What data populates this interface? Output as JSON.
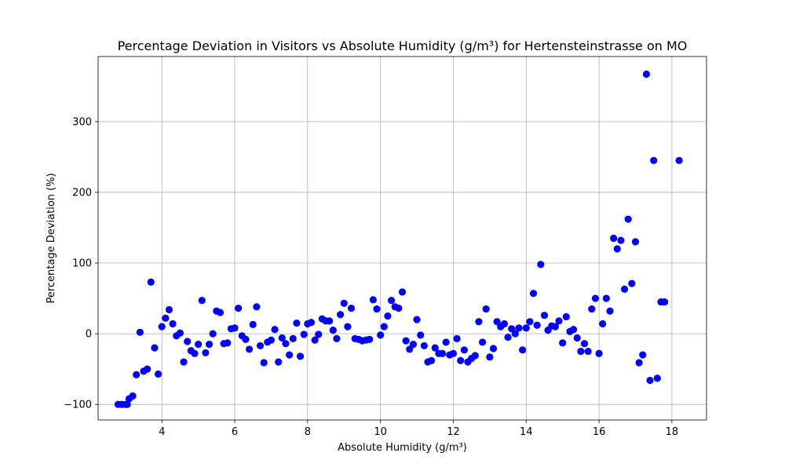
{
  "chart_data": {
    "type": "scatter",
    "title": "Percentage Deviation in Visitors vs Absolute Humidity (g/m³) for Hertensteinstrasse on MO",
    "xlabel": "Absolute Humidity (g/m³)",
    "ylabel": "Percentage Deviation (%)",
    "xlim": [
      2.25,
      18.95
    ],
    "ylim": [
      -122,
      392
    ],
    "xticks": [
      4,
      6,
      8,
      10,
      12,
      14,
      16,
      18
    ],
    "yticks": [
      -100,
      0,
      100,
      200,
      300
    ],
    "grid": true,
    "marker_color": "#0000ff",
    "points": [
      [
        2.8,
        -100
      ],
      [
        2.9,
        -100
      ],
      [
        3.0,
        -100
      ],
      [
        3.05,
        -100
      ],
      [
        3.1,
        -92
      ],
      [
        3.2,
        -88
      ],
      [
        3.3,
        -58
      ],
      [
        3.4,
        2
      ],
      [
        3.5,
        -53
      ],
      [
        3.6,
        -50
      ],
      [
        3.7,
        73
      ],
      [
        3.8,
        -20
      ],
      [
        3.9,
        -57
      ],
      [
        4.0,
        10
      ],
      [
        4.1,
        22
      ],
      [
        4.2,
        34
      ],
      [
        4.3,
        14
      ],
      [
        4.4,
        -3
      ],
      [
        4.5,
        1
      ],
      [
        4.6,
        -40
      ],
      [
        4.7,
        -11
      ],
      [
        4.8,
        -24
      ],
      [
        4.9,
        -28
      ],
      [
        5.0,
        -15
      ],
      [
        5.1,
        47
      ],
      [
        5.2,
        -27
      ],
      [
        5.3,
        -15
      ],
      [
        5.4,
        0
      ],
      [
        5.5,
        32
      ],
      [
        5.6,
        30
      ],
      [
        5.7,
        -14
      ],
      [
        5.8,
        -13
      ],
      [
        5.9,
        7
      ],
      [
        6.0,
        8
      ],
      [
        6.1,
        36
      ],
      [
        6.2,
        -3
      ],
      [
        6.3,
        -8
      ],
      [
        6.4,
        -22
      ],
      [
        6.5,
        13
      ],
      [
        6.6,
        38
      ],
      [
        6.7,
        -17
      ],
      [
        6.8,
        -41
      ],
      [
        6.9,
        -12
      ],
      [
        7.0,
        -9
      ],
      [
        7.1,
        6
      ],
      [
        7.2,
        -40
      ],
      [
        7.3,
        -6
      ],
      [
        7.4,
        -14
      ],
      [
        7.5,
        -30
      ],
      [
        7.6,
        -7
      ],
      [
        7.7,
        15
      ],
      [
        7.8,
        -32
      ],
      [
        7.9,
        -1
      ],
      [
        8.0,
        14
      ],
      [
        8.1,
        16
      ],
      [
        8.2,
        -9
      ],
      [
        8.3,
        -1
      ],
      [
        8.4,
        21
      ],
      [
        8.5,
        18
      ],
      [
        8.6,
        18
      ],
      [
        8.7,
        5
      ],
      [
        8.8,
        -7
      ],
      [
        8.9,
        27
      ],
      [
        9.0,
        43
      ],
      [
        9.1,
        10
      ],
      [
        9.2,
        36
      ],
      [
        9.3,
        -7
      ],
      [
        9.4,
        -8
      ],
      [
        9.5,
        -10
      ],
      [
        9.6,
        -9
      ],
      [
        9.7,
        -8
      ],
      [
        9.8,
        48
      ],
      [
        9.9,
        35
      ],
      [
        10.0,
        -2
      ],
      [
        10.1,
        10
      ],
      [
        10.2,
        25
      ],
      [
        10.3,
        47
      ],
      [
        10.4,
        38
      ],
      [
        10.5,
        36
      ],
      [
        10.6,
        59
      ],
      [
        10.7,
        -10
      ],
      [
        10.8,
        -22
      ],
      [
        10.9,
        -15
      ],
      [
        11.0,
        20
      ],
      [
        11.1,
        -2
      ],
      [
        11.2,
        -17
      ],
      [
        11.3,
        -40
      ],
      [
        11.4,
        -38
      ],
      [
        11.5,
        -20
      ],
      [
        11.6,
        -28
      ],
      [
        11.7,
        -28
      ],
      [
        11.8,
        -12
      ],
      [
        11.9,
        -30
      ],
      [
        12.0,
        -28
      ],
      [
        12.1,
        -7
      ],
      [
        12.2,
        -38
      ],
      [
        12.3,
        -23
      ],
      [
        12.4,
        -40
      ],
      [
        12.5,
        -35
      ],
      [
        12.6,
        -31
      ],
      [
        12.7,
        17
      ],
      [
        12.8,
        -12
      ],
      [
        12.9,
        35
      ],
      [
        13.0,
        -33
      ],
      [
        13.1,
        -21
      ],
      [
        13.2,
        17
      ],
      [
        13.3,
        10
      ],
      [
        13.4,
        14
      ],
      [
        13.5,
        -5
      ],
      [
        13.6,
        7
      ],
      [
        13.7,
        0
      ],
      [
        13.8,
        8
      ],
      [
        13.9,
        -23
      ],
      [
        14.0,
        8
      ],
      [
        14.1,
        17
      ],
      [
        14.2,
        57
      ],
      [
        14.3,
        12
      ],
      [
        14.4,
        98
      ],
      [
        14.5,
        26
      ],
      [
        14.6,
        5
      ],
      [
        14.7,
        11
      ],
      [
        14.8,
        10
      ],
      [
        14.9,
        18
      ],
      [
        15.0,
        -13
      ],
      [
        15.1,
        24
      ],
      [
        15.2,
        3
      ],
      [
        15.3,
        6
      ],
      [
        15.4,
        -6
      ],
      [
        15.5,
        -25
      ],
      [
        15.6,
        -14
      ],
      [
        15.7,
        -25
      ],
      [
        15.8,
        35
      ],
      [
        15.9,
        50
      ],
      [
        16.0,
        -28
      ],
      [
        16.1,
        14
      ],
      [
        16.2,
        50
      ],
      [
        16.3,
        32
      ],
      [
        16.4,
        135
      ],
      [
        16.5,
        120
      ],
      [
        16.6,
        132
      ],
      [
        16.7,
        63
      ],
      [
        16.8,
        162
      ],
      [
        16.9,
        71
      ],
      [
        17.0,
        130
      ],
      [
        17.1,
        -41
      ],
      [
        17.2,
        -30
      ],
      [
        17.3,
        367
      ],
      [
        17.4,
        -66
      ],
      [
        17.5,
        245
      ],
      [
        17.6,
        -63
      ],
      [
        17.7,
        45
      ],
      [
        17.8,
        45
      ],
      [
        18.2,
        245
      ]
    ]
  }
}
